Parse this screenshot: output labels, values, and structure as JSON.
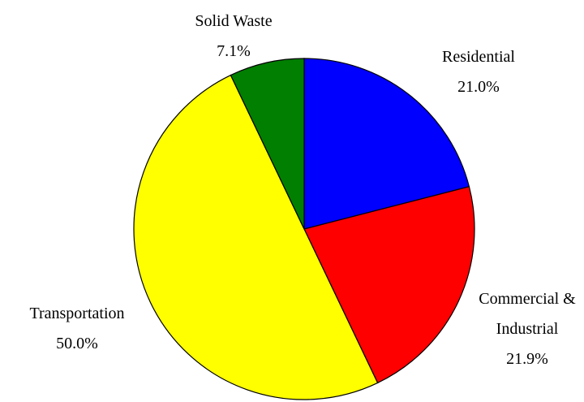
{
  "chart_data": {
    "type": "pie",
    "categories": [
      "Residential",
      "Commercial & Industrial",
      "Transportation",
      "Solid Waste"
    ],
    "values": [
      21.0,
      21.9,
      50.0,
      7.1
    ],
    "value_labels": [
      "21.0%",
      "21.9%",
      "50.0%",
      "7.1%"
    ],
    "colors": [
      "#0000ff",
      "#ff0000",
      "#ffff00",
      "#007f00"
    ]
  }
}
